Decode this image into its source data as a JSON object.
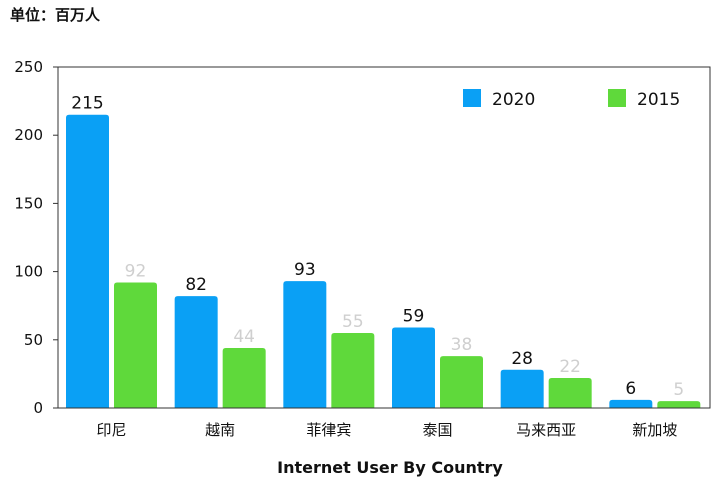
{
  "unit_label": "单位：百万人",
  "chart_data": {
    "type": "bar",
    "title": "",
    "xlabel": "Internet User By Country",
    "ylabel": "",
    "ylim": [
      0,
      250
    ],
    "yticks": [
      0,
      50,
      100,
      150,
      200,
      250
    ],
    "categories": [
      "印尼",
      "越南",
      "菲律宾",
      "泰国",
      "马来西亚",
      "新加坡"
    ],
    "series": [
      {
        "name": "2020",
        "color": "#0aa0f5",
        "values": [
          215,
          82,
          93,
          59,
          28,
          6
        ]
      },
      {
        "name": "2015",
        "color": "#5fd93b",
        "values": [
          92,
          44,
          55,
          38,
          22,
          5
        ]
      }
    ],
    "legend_position": "top-right",
    "grid": false
  }
}
